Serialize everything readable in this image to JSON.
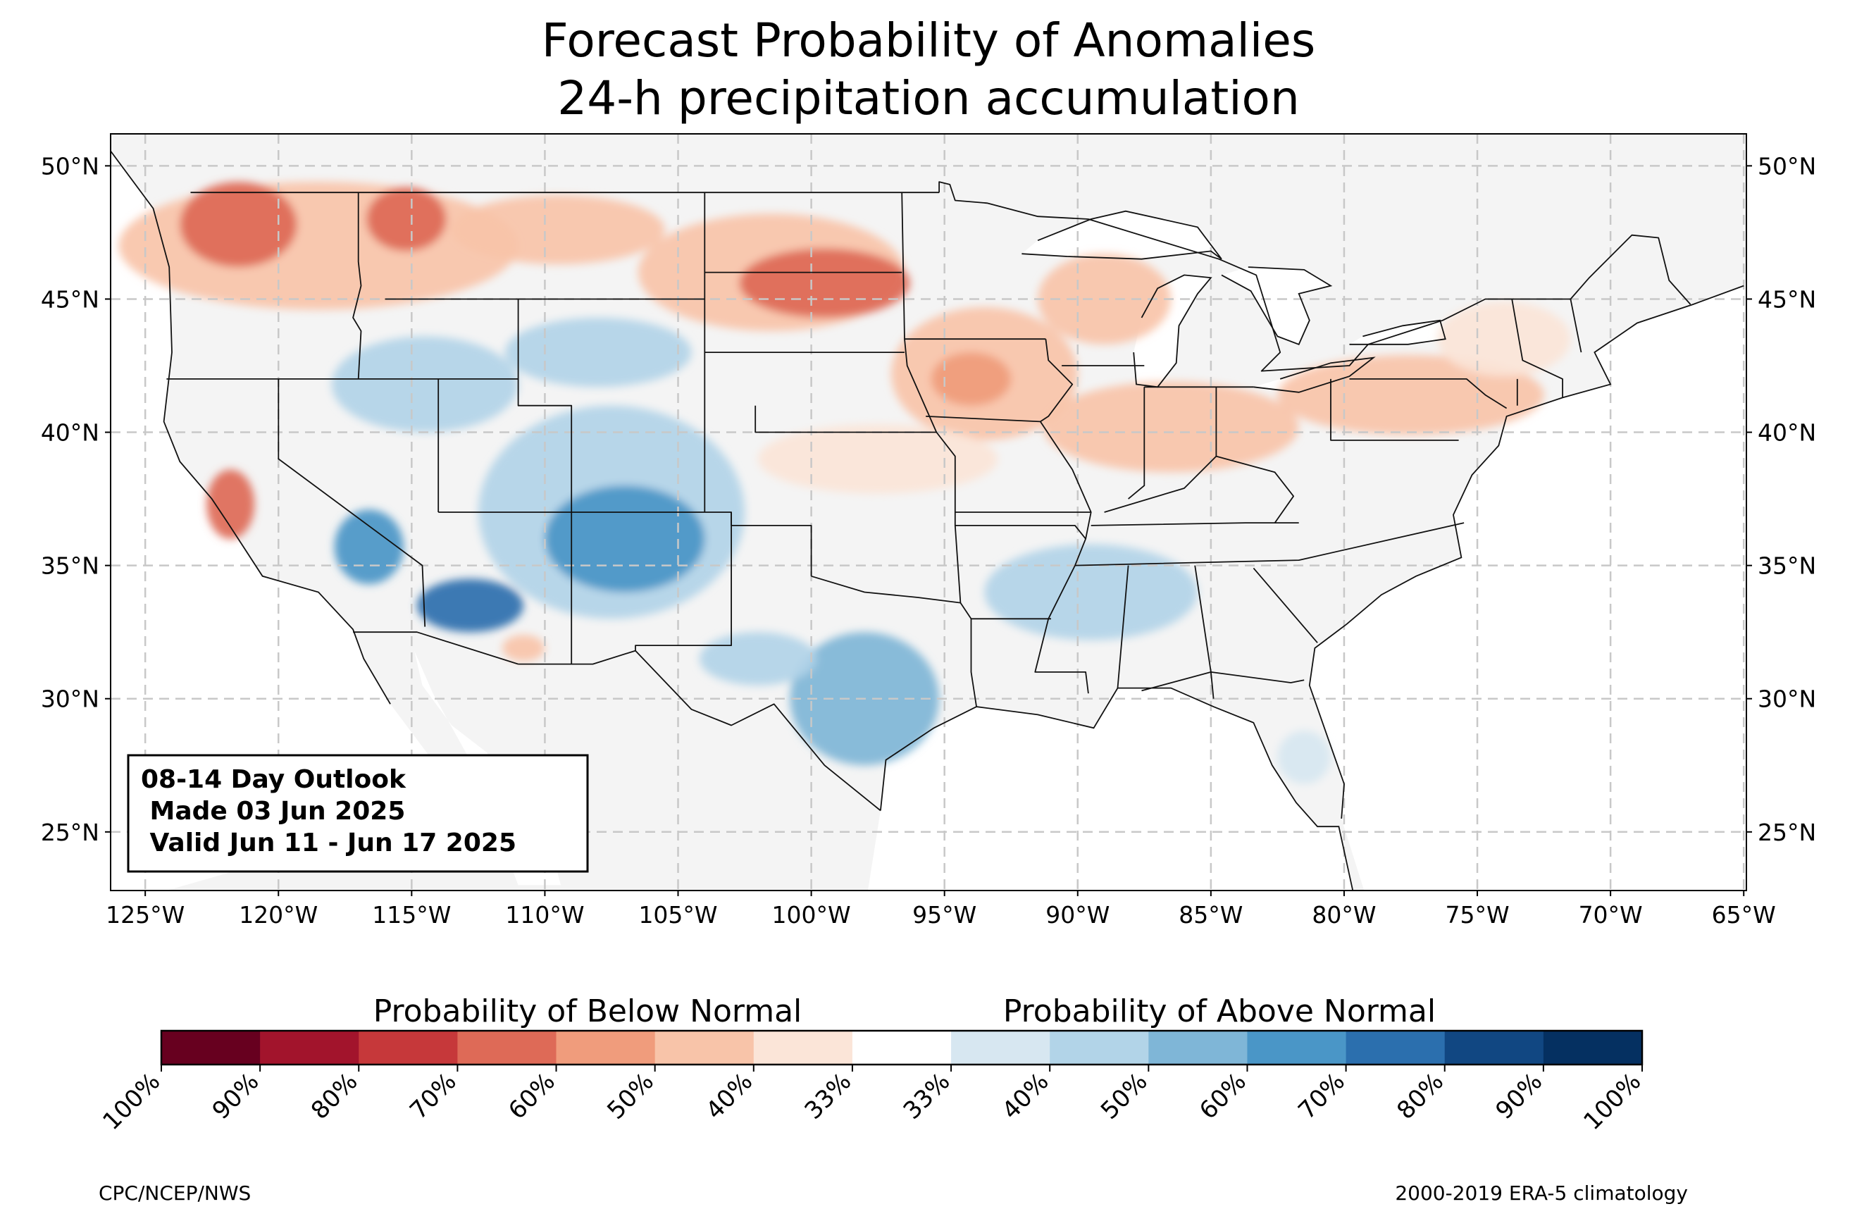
{
  "title": {
    "line1": "Forecast Probability of Anomalies",
    "line2": "24-h precipitation accumulation"
  },
  "map": {
    "lon_min": -126.3,
    "lon_max": -64.9,
    "lat_min": 22.8,
    "lat_max": 51.2,
    "gridlines": true,
    "lat_ticks": [
      {
        "value": 50,
        "label": "50°N"
      },
      {
        "value": 45,
        "label": "45°N"
      },
      {
        "value": 40,
        "label": "40°N"
      },
      {
        "value": 35,
        "label": "35°N"
      },
      {
        "value": 30,
        "label": "30°N"
      },
      {
        "value": 25,
        "label": "25°N"
      }
    ],
    "lon_ticks": [
      {
        "value": -125,
        "label": "125°W"
      },
      {
        "value": -120,
        "label": "120°W"
      },
      {
        "value": -115,
        "label": "115°W"
      },
      {
        "value": -110,
        "label": "110°W"
      },
      {
        "value": -105,
        "label": "105°W"
      },
      {
        "value": -100,
        "label": "100°W"
      },
      {
        "value": -95,
        "label": "95°W"
      },
      {
        "value": -90,
        "label": "90°W"
      },
      {
        "value": -85,
        "label": "85°W"
      },
      {
        "value": -80,
        "label": "80°W"
      },
      {
        "value": -75,
        "label": "75°W"
      },
      {
        "value": -70,
        "label": "70°W"
      },
      {
        "value": -65,
        "label": "65°W"
      }
    ],
    "background_color": "#f4f4f4",
    "water_color": "#ffffff"
  },
  "outlook_box": {
    "line1": "08-14 Day Outlook",
    "line2": " Made 03 Jun 2025",
    "line3": " Valid Jun 11 - Jun 17 2025"
  },
  "colorbar": {
    "below_label": "Probability of Below Normal",
    "above_label": "Probability of Above Normal",
    "colors": [
      "#67001f",
      "#a2142c",
      "#c6383a",
      "#de6a57",
      "#f09c7c",
      "#f8c4a9",
      "#fbe5d8",
      "#ffffff",
      "#d7e7f1",
      "#b2d4e8",
      "#7fb6d7",
      "#4a96c7",
      "#2b6fae",
      "#114782",
      "#053061"
    ],
    "tick_labels": [
      "100%",
      "90%",
      "80%",
      "70%",
      "60%",
      "50%",
      "40%",
      "33%",
      "33%",
      "40%",
      "50%",
      "60%",
      "70%",
      "80%",
      "90%",
      "100%"
    ]
  },
  "credits": {
    "left": "CPC/NCEP/NWS",
    "right": "2000-2019 ERA-5 climatology"
  },
  "anomalies": [
    {
      "type": "below",
      "level": 2,
      "lon": -118.5,
      "lat": 47.0,
      "rlon": 7.5,
      "rlat": 2.4
    },
    {
      "type": "below",
      "level": 4,
      "lon": -121.5,
      "lat": 47.8,
      "rlon": 2.2,
      "rlat": 1.6
    },
    {
      "type": "below",
      "level": 4,
      "lon": -115.2,
      "lat": 48.0,
      "rlon": 1.5,
      "rlat": 1.2
    },
    {
      "type": "below",
      "level": 2,
      "lon": -109.5,
      "lat": 47.6,
      "rlon": 4.0,
      "rlat": 1.3
    },
    {
      "type": "below",
      "level": 2,
      "lon": -101.5,
      "lat": 46.0,
      "rlon": 5.0,
      "rlat": 2.2
    },
    {
      "type": "below",
      "level": 4,
      "lon": -99.5,
      "lat": 45.6,
      "rlon": 3.2,
      "rlat": 1.3
    },
    {
      "type": "below",
      "level": 2,
      "lon": -93.5,
      "lat": 42.2,
      "rlon": 3.5,
      "rlat": 2.5
    },
    {
      "type": "below",
      "level": 3,
      "lon": -94.0,
      "lat": 42.0,
      "rlon": 1.5,
      "rlat": 1.0
    },
    {
      "type": "below",
      "level": 2,
      "lon": -86.5,
      "lat": 40.2,
      "rlon": 4.8,
      "rlat": 1.7
    },
    {
      "type": "below",
      "level": 2,
      "lon": -77.5,
      "lat": 41.4,
      "rlon": 5.0,
      "rlat": 1.5
    },
    {
      "type": "below",
      "level": 2,
      "lon": -89.0,
      "lat": 45.0,
      "rlon": 2.5,
      "rlat": 1.7
    },
    {
      "type": "below",
      "level": 1,
      "lon": -97.5,
      "lat": 39.0,
      "rlon": 4.5,
      "rlat": 1.3
    },
    {
      "type": "below",
      "level": 4,
      "lon": -121.8,
      "lat": 37.3,
      "rlon": 0.9,
      "rlat": 1.3
    },
    {
      "type": "below",
      "level": 2,
      "lon": -110.8,
      "lat": 31.9,
      "rlon": 0.8,
      "rlat": 0.5
    },
    {
      "type": "below",
      "level": 1,
      "lon": -74.0,
      "lat": 43.5,
      "rlon": 2.5,
      "rlat": 1.4
    },
    {
      "type": "above",
      "level": 2,
      "lon": -107.5,
      "lat": 37.0,
      "rlon": 5.0,
      "rlat": 4.0
    },
    {
      "type": "above",
      "level": 4,
      "lon": -107.0,
      "lat": 36.0,
      "rlon": 3.0,
      "rlat": 2.0
    },
    {
      "type": "above",
      "level": 2,
      "lon": -114.5,
      "lat": 41.8,
      "rlon": 3.5,
      "rlat": 1.8
    },
    {
      "type": "above",
      "level": 5,
      "lon": -112.8,
      "lat": 33.5,
      "rlon": 2.0,
      "rlat": 1.0
    },
    {
      "type": "above",
      "level": 4,
      "lon": -116.6,
      "lat": 35.7,
      "rlon": 1.3,
      "rlat": 1.4
    },
    {
      "type": "above",
      "level": 3,
      "lon": -98.0,
      "lat": 30.0,
      "rlon": 2.8,
      "rlat": 2.5
    },
    {
      "type": "above",
      "level": 2,
      "lon": -89.5,
      "lat": 34.0,
      "rlon": 4.0,
      "rlat": 1.8
    },
    {
      "type": "above",
      "level": 2,
      "lon": -108.0,
      "lat": 43.0,
      "rlon": 3.5,
      "rlat": 1.3
    },
    {
      "type": "above",
      "level": 1,
      "lon": -81.5,
      "lat": 27.8,
      "rlon": 1.0,
      "rlat": 1.0
    },
    {
      "type": "above",
      "level": 2,
      "lon": -102.0,
      "lat": 31.5,
      "rlon": 2.2,
      "rlat": 1.0
    }
  ]
}
